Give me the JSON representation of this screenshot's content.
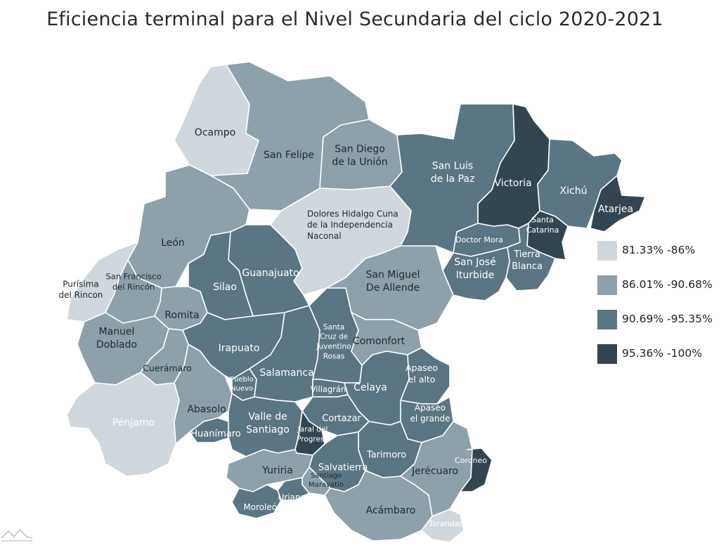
{
  "title": "Eficiencia terminal para el Nivel Secundaria del ciclo 2020-2021",
  "legend": [
    {
      "label": "81.33% -86%",
      "color": "#d0d8dd"
    },
    {
      "label": "86.01% -90.68%",
      "color": "#8ea0aa"
    },
    {
      "label": "90.69% -95.35%",
      "color": "#5b7583"
    },
    {
      "label": "95.36% -100%",
      "color": "#334550"
    }
  ],
  "municipios": [
    {
      "id": "ocampo",
      "lines": [
        "Ocampo"
      ],
      "class": 1
    },
    {
      "id": "san-felipe",
      "lines": [
        "San Felipe"
      ],
      "class": 2
    },
    {
      "id": "san-diego-de-la-union",
      "lines": [
        "San Diego",
        "de la Unión"
      ],
      "class": 2
    },
    {
      "id": "san-luis-de-la-paz",
      "lines": [
        "San Luis",
        "de la Paz"
      ],
      "class": 3
    },
    {
      "id": "victoria",
      "lines": [
        "Victoria"
      ],
      "class": 4
    },
    {
      "id": "xichu",
      "lines": [
        "Xichú"
      ],
      "class": 3
    },
    {
      "id": "atarjea",
      "lines": [
        "Atarjea"
      ],
      "class": 4
    },
    {
      "id": "santa-catarina",
      "lines": [
        "Santa",
        "Catarina"
      ],
      "class": 4
    },
    {
      "id": "doctor-mora",
      "lines": [
        "Doctor Mora"
      ],
      "class": 3
    },
    {
      "id": "tierra-blanca",
      "lines": [
        "Tierra",
        "Blanca"
      ],
      "class": 3
    },
    {
      "id": "san-jose-iturbide",
      "lines": [
        "San José",
        "Iturbide"
      ],
      "class": 3
    },
    {
      "id": "leon",
      "lines": [
        "León"
      ],
      "class": 2
    },
    {
      "id": "dolores-hidalgo",
      "lines": [
        "Dolores Hidalgo Cuna",
        "de la Independencia",
        "Naconal"
      ],
      "class": 1
    },
    {
      "id": "guanajuato",
      "lines": [
        "Guanajuato"
      ],
      "class": 3
    },
    {
      "id": "silao",
      "lines": [
        "Silao"
      ],
      "class": 3
    },
    {
      "id": "purisima-del-rincon",
      "lines": [
        "Purísima",
        "del Rincon"
      ],
      "class": 1
    },
    {
      "id": "san-francisco-del-rincon",
      "lines": [
        "San Francisco",
        "del Rincón"
      ],
      "class": 2
    },
    {
      "id": "romita",
      "lines": [
        "Romita"
      ],
      "class": 2
    },
    {
      "id": "san-miguel-de-allende",
      "lines": [
        "San Miguel",
        "De Allende"
      ],
      "class": 2
    },
    {
      "id": "manuel-doblado",
      "lines": [
        "Manuel",
        "Doblado"
      ],
      "class": 2
    },
    {
      "id": "irapuato",
      "lines": [
        "Irapuato"
      ],
      "class": 3
    },
    {
      "id": "santa-cruz-de-juventino-rosas",
      "lines": [
        "Santa",
        "Cruz de",
        "Juventino",
        "Rosas"
      ],
      "class": 3
    },
    {
      "id": "comonfort",
      "lines": [
        "Comonfort"
      ],
      "class": 2
    },
    {
      "id": "cueramaro",
      "lines": [
        "Cuerámaro"
      ],
      "class": 2
    },
    {
      "id": "salamanca",
      "lines": [
        "Salamanca"
      ],
      "class": 3
    },
    {
      "id": "villagran",
      "lines": [
        "Villagrán"
      ],
      "class": 3
    },
    {
      "id": "celaya",
      "lines": [
        "Celaya"
      ],
      "class": 3
    },
    {
      "id": "apaseo-el-alto",
      "lines": [
        "Apaseo",
        "el alto"
      ],
      "class": 3
    },
    {
      "id": "pueblo-nuevo",
      "lines": [
        "Pueblo",
        "Nuevo"
      ],
      "class": 3
    },
    {
      "id": "abasolo",
      "lines": [
        "Abasolo"
      ],
      "class": 2
    },
    {
      "id": "penjamo",
      "lines": [
        "Pénjamo"
      ],
      "class": 1
    },
    {
      "id": "apaseo-el-grande",
      "lines": [
        "Apaseo",
        "el grande"
      ],
      "class": 3
    },
    {
      "id": "valle-de-santiago",
      "lines": [
        "Valle de",
        "Santiago"
      ],
      "class": 3
    },
    {
      "id": "cortazar",
      "lines": [
        "Cortazar"
      ],
      "class": 3
    },
    {
      "id": "jaral-del-progreso",
      "lines": [
        "Jaral del",
        "Progreso"
      ],
      "class": 4
    },
    {
      "id": "huanimaro",
      "lines": [
        "Huanímaro"
      ],
      "class": 3
    },
    {
      "id": "tarimoro",
      "lines": [
        "Tarimoro"
      ],
      "class": 3
    },
    {
      "id": "coroneo",
      "lines": [
        "Coroneo"
      ],
      "class": 4
    },
    {
      "id": "yuriria",
      "lines": [
        "Yuriria"
      ],
      "class": 2
    },
    {
      "id": "salvatierra",
      "lines": [
        "Salvatierra"
      ],
      "class": 3
    },
    {
      "id": "jerecuaro",
      "lines": [
        "Jerécuaro"
      ],
      "class": 2
    },
    {
      "id": "santiago-maravatio",
      "lines": [
        "Santiago",
        "Maravatío"
      ],
      "class": 2
    },
    {
      "id": "uriangato",
      "lines": [
        "Uriangato"
      ],
      "class": 3
    },
    {
      "id": "moroleon",
      "lines": [
        "Moroleón"
      ],
      "class": 3
    },
    {
      "id": "acambaro",
      "lines": [
        "Acámbaro"
      ],
      "class": 2
    },
    {
      "id": "tarandacuao",
      "lines": [
        "Tarandacuao"
      ],
      "class": 1
    }
  ]
}
